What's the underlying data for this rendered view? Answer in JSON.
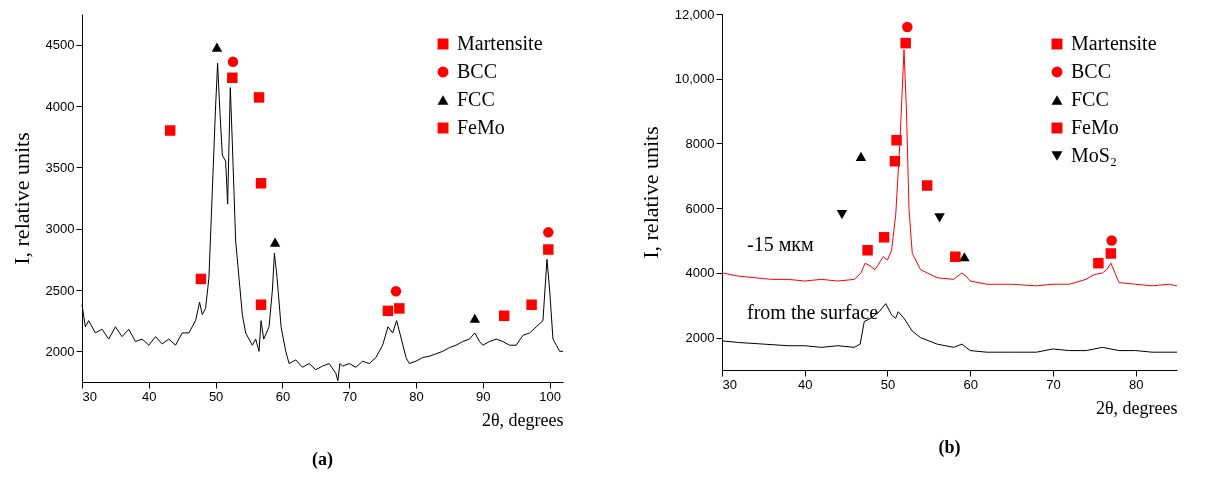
{
  "chart_data": [
    {
      "type": "line",
      "xlabel": "2θ, degrees",
      "ylabel": "I, relative units",
      "xlim": [
        30,
        102
      ],
      "ylim": [
        1750,
        4750
      ],
      "xticks": [
        30,
        40,
        50,
        60,
        70,
        80,
        90,
        100
      ],
      "yticks": [
        2000,
        2500,
        3000,
        3500,
        4000,
        4500
      ],
      "grid": false,
      "legend": "top right",
      "annotations": [
        "(a)"
      ],
      "series": [
        {
          "type": "line",
          "color": "#000000",
          "x": [
            30,
            30.5,
            31,
            32,
            33,
            34,
            35,
            36,
            37,
            38,
            39,
            40,
            41,
            42,
            43,
            44,
            45,
            46,
            47,
            47.6,
            48,
            48.5,
            49,
            49.5,
            50,
            50.3,
            50.6,
            51,
            51.5,
            51.8,
            52.2,
            52.5,
            53,
            53.5,
            54,
            54.5,
            55,
            55.5,
            56,
            56.5,
            56.8,
            57.2,
            58,
            58.5,
            58.8,
            59.2,
            59.8,
            60.5,
            61,
            62,
            63,
            64,
            65,
            66,
            67,
            68,
            68.3,
            68.6,
            69,
            70,
            71,
            72,
            73,
            74,
            75,
            75.8,
            76.5,
            77.1,
            77.8,
            78.5,
            79,
            80,
            81,
            82,
            83,
            84,
            85,
            86,
            87,
            88,
            88.8,
            89.5,
            90,
            91,
            92,
            93,
            94,
            95,
            96,
            97,
            98,
            99,
            99.6,
            100,
            100.5,
            101,
            101.5,
            102
          ],
          "values": [
            2380,
            2200,
            2250,
            2150,
            2180,
            2100,
            2200,
            2120,
            2180,
            2080,
            2100,
            2050,
            2120,
            2060,
            2100,
            2050,
            2150,
            2150,
            2250,
            2400,
            2300,
            2350,
            2600,
            3300,
            4000,
            4350,
            4000,
            3600,
            3550,
            3200,
            4150,
            3700,
            2900,
            2600,
            2300,
            2150,
            2100,
            2050,
            2100,
            2000,
            2250,
            2100,
            2200,
            2500,
            2800,
            2600,
            2200,
            2000,
            1900,
            1930,
            1870,
            1900,
            1850,
            1880,
            1900,
            1820,
            1760,
            1900,
            1880,
            1900,
            1870,
            1920,
            1900,
            1950,
            2050,
            2200,
            2150,
            2250,
            2100,
            1950,
            1900,
            1920,
            1950,
            1960,
            1980,
            2000,
            2030,
            2050,
            2080,
            2100,
            2150,
            2080,
            2050,
            2080,
            2100,
            2080,
            2050,
            2050,
            2130,
            2150,
            2200,
            2250,
            2750,
            2500,
            2100,
            2050,
            2000,
            2000
          ]
        },
        {
          "type": "scatter",
          "name": "Martensite",
          "color": "#ff0000",
          "marker": "square",
          "x": [
            52.5,
            56.5,
            75.8,
            77.5,
            97.3,
            99.8
          ],
          "values": [
            4230,
            4070,
            2330,
            2350,
            2380,
            2830
          ]
        },
        {
          "type": "scatter",
          "name": "BCC",
          "color": "#ff0000",
          "marker": "circle",
          "x": [
            52.6,
            77,
            99.8
          ],
          "values": [
            4360,
            2490,
            2970
          ]
        },
        {
          "type": "scatter",
          "name": "FCC",
          "color": "#000000",
          "marker": "triangle",
          "x": [
            50.2,
            58.9,
            88.8
          ],
          "values": [
            4480,
            2890,
            2270
          ]
        },
        {
          "type": "scatter",
          "name": "FeMo",
          "color": "#ff0000",
          "marker": "square",
          "x": [
            43.2,
            47.8,
            56.8,
            56.8,
            93.2
          ],
          "values": [
            3800,
            2590,
            3370,
            2380,
            2290
          ]
        }
      ]
    },
    {
      "type": "line",
      "xlabel": "2θ, degrees",
      "ylabel": "I, relative units",
      "xlim": [
        30,
        85
      ],
      "ylim": [
        1000,
        12000
      ],
      "xticks": [
        30,
        40,
        50,
        60,
        70,
        80
      ],
      "yticks": [
        2000,
        4000,
        6000,
        8000,
        {
          "value": 10000,
          "label": "10,000"
        },
        {
          "value": 12000,
          "label": "12,000"
        }
      ],
      "grid": false,
      "legend": "top right",
      "annotations": [
        "(b)"
      ],
      "series": [
        {
          "type": "line",
          "name": "-15 мкм",
          "color": "#ff0000",
          "x": [
            30,
            32,
            34,
            36,
            38,
            40,
            42,
            44,
            46,
            46.8,
            47.3,
            48,
            48.5,
            49.5,
            50,
            50.5,
            51,
            51.5,
            52,
            52.3,
            52.6,
            53,
            54,
            56,
            58,
            59,
            59.5,
            60,
            62,
            65,
            68,
            70,
            72,
            74,
            75,
            76,
            76.5,
            77,
            77.5,
            78,
            80,
            82,
            84,
            85
          ],
          "values": [
            4000,
            3900,
            3850,
            3800,
            3800,
            3750,
            3800,
            3750,
            3800,
            4000,
            4300,
            4200,
            4100,
            4500,
            4400,
            4700,
            5800,
            8000,
            10900,
            9000,
            6000,
            4600,
            4100,
            3850,
            3800,
            4000,
            3900,
            3750,
            3650,
            3650,
            3600,
            3650,
            3650,
            3800,
            3950,
            4000,
            4100,
            4300,
            4000,
            3700,
            3650,
            3600,
            3650,
            3600
          ]
        },
        {
          "type": "line",
          "name": "from the surface",
          "color": "#000000",
          "x": [
            30,
            32,
            35,
            38,
            40,
            42,
            44,
            46,
            46.7,
            47.2,
            48,
            49,
            49.8,
            50.5,
            51,
            51.3,
            52,
            53,
            54,
            56,
            58,
            59,
            60,
            62,
            65,
            68,
            70,
            72,
            74,
            76,
            78,
            80,
            82,
            85
          ],
          "values": [
            1900,
            1850,
            1800,
            1750,
            1750,
            1700,
            1750,
            1700,
            1800,
            2500,
            2600,
            2800,
            3050,
            2700,
            2600,
            2800,
            2600,
            2200,
            2000,
            1800,
            1700,
            1800,
            1600,
            1550,
            1550,
            1550,
            1650,
            1600,
            1600,
            1700,
            1600,
            1600,
            1550,
            1550
          ]
        },
        {
          "type": "scatter",
          "name": "Martensite",
          "color": "#ff0000",
          "marker": "square",
          "x": [
            52.2,
            51.1,
            75.5,
            77
          ],
          "values": [
            11100,
            8100,
            4300,
            4600
          ]
        },
        {
          "type": "scatter",
          "name": "BCC",
          "color": "#ff0000",
          "marker": "circle",
          "x": [
            52.4,
            77.1
          ],
          "values": [
            11600,
            5000
          ]
        },
        {
          "type": "scatter",
          "name": "FCC",
          "color": "#000000",
          "marker": "triangle",
          "x": [
            46.8,
            59.3
          ],
          "values": [
            7600,
            4500
          ]
        },
        {
          "type": "scatter",
          "name": "FeMo",
          "color": "#ff0000",
          "marker": "square",
          "x": [
            47.6,
            49.6,
            50.9,
            54.8,
            58.2
          ],
          "values": [
            4700,
            5100,
            7450,
            6700,
            4500
          ]
        },
        {
          "type": "scatter",
          "name": "MoS₂",
          "color": "#000000",
          "marker": "triangle-down",
          "x": [
            44.5,
            56.3
          ],
          "values": [
            5800,
            5700
          ]
        }
      ]
    }
  ]
}
